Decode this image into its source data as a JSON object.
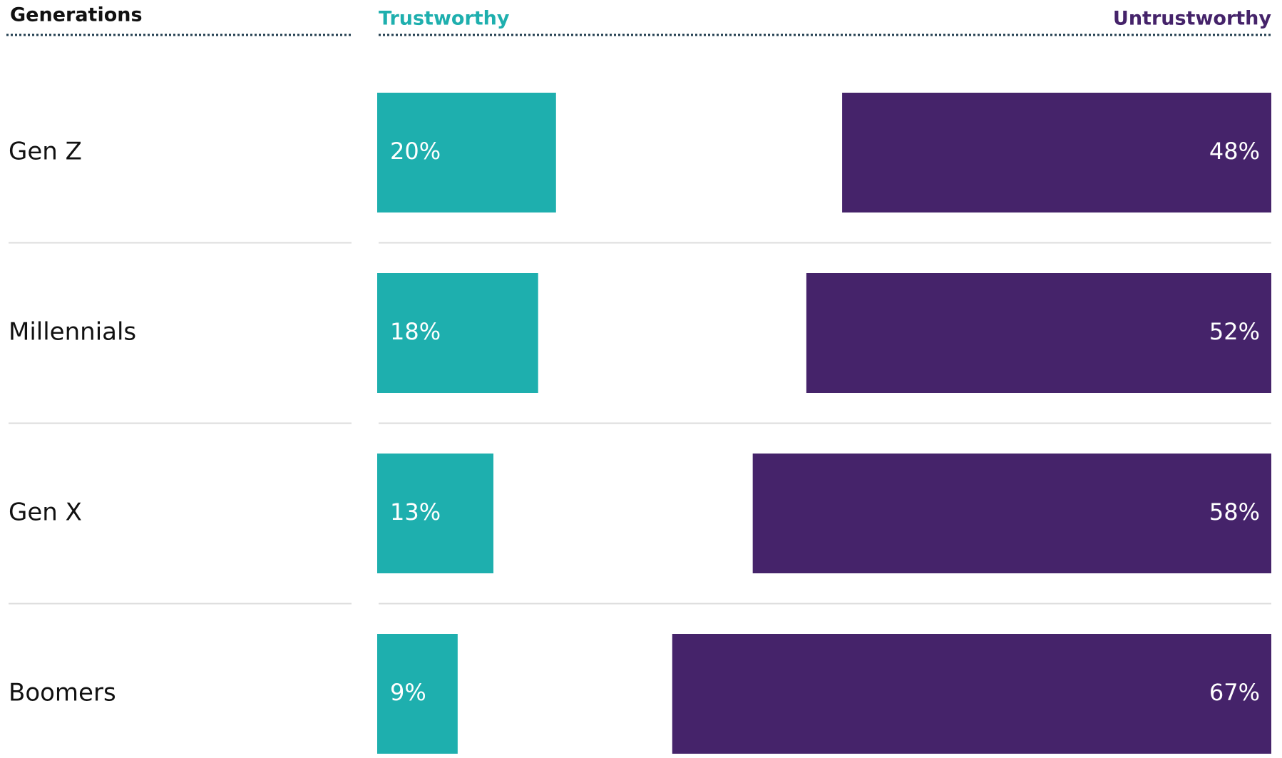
{
  "chart_data": {
    "type": "diverging-bar",
    "header": "Generations",
    "categories": [
      "Gen Z",
      "Millennials",
      "Gen X",
      "Boomers"
    ],
    "xlim": [
      0,
      100
    ],
    "series": [
      {
        "name": "Trustworthy",
        "color": "#1eafae",
        "values": [
          20,
          18,
          13,
          9
        ],
        "value_labels": [
          "20%",
          "18%",
          "13%",
          "9%"
        ]
      },
      {
        "name": "Untrustworthy",
        "color": "#45236a",
        "values": [
          48,
          52,
          58,
          67
        ],
        "value_labels": [
          "48%",
          "52%",
          "58%",
          "67%"
        ]
      }
    ]
  }
}
